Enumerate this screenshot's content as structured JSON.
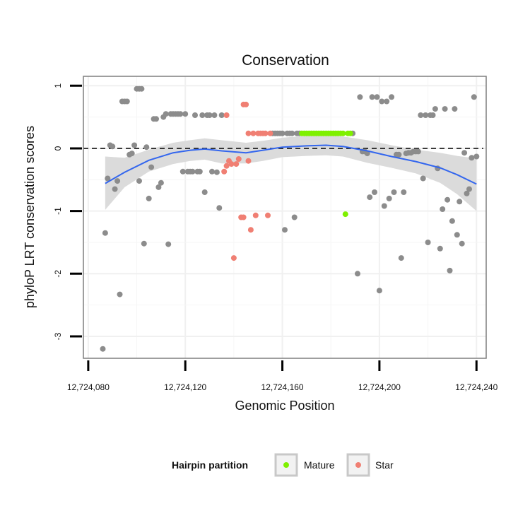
{
  "chart_data": {
    "type": "scatter",
    "title": "Conservation",
    "xlabel": "Genomic Position",
    "ylabel": "phyloP LRT conservation scores",
    "xlim": [
      12724078,
      12724244
    ],
    "ylim": [
      -3.35,
      1.15
    ],
    "x_ticks": [
      {
        "value": 12724080,
        "label": "12,724,080"
      },
      {
        "value": 12724120,
        "label": "12,724,120"
      },
      {
        "value": 12724160,
        "label": "12,724,160"
      },
      {
        "value": 12724200,
        "label": "12,724,200"
      },
      {
        "value": 12724240,
        "label": "12,724,240"
      }
    ],
    "y_ticks": [
      {
        "value": 1,
        "label": "1"
      },
      {
        "value": 0,
        "label": "0"
      },
      {
        "value": -1,
        "label": "-1"
      },
      {
        "value": -2,
        "label": "-2"
      },
      {
        "value": -3,
        "label": "-3"
      }
    ],
    "grid": true,
    "reference_line": {
      "y": 0,
      "style": "dashed"
    },
    "colors": {
      "other": "#8c8c8c",
      "mature": "#7ff000",
      "star": "#f07f73",
      "smooth": "#3366ee",
      "ribbon": "#d9d9d9",
      "panel_border": "#7f7f7f"
    },
    "legend": {
      "title": "Hairpin partition",
      "position": "bottom",
      "entries": [
        {
          "label": "Mature",
          "color": "#7ff000"
        },
        {
          "label": "Star",
          "color": "#f07f73"
        }
      ]
    },
    "series": [
      {
        "group": "other",
        "points": [
          [
            12724086,
            -3.2
          ],
          [
            12724087,
            -1.35
          ],
          [
            12724088,
            -0.48
          ],
          [
            12724089,
            0.05
          ],
          [
            12724090,
            0.03
          ],
          [
            12724091,
            -0.65
          ],
          [
            12724092,
            -0.52
          ],
          [
            12724093,
            -2.33
          ],
          [
            12724094,
            0.75
          ],
          [
            12724095,
            0.75
          ],
          [
            12724096,
            0.75
          ],
          [
            12724097,
            -0.1
          ],
          [
            12724098,
            -0.08
          ],
          [
            12724099,
            0.05
          ],
          [
            12724100,
            0.95
          ],
          [
            12724101,
            0.95
          ],
          [
            12724101,
            -0.52
          ],
          [
            12724102,
            0.95
          ],
          [
            12724103,
            -1.52
          ],
          [
            12724104,
            0.02
          ],
          [
            12724105,
            -0.8
          ],
          [
            12724106,
            -0.3
          ],
          [
            12724107,
            0.47
          ],
          [
            12724108,
            0.47
          ],
          [
            12724109,
            -0.62
          ],
          [
            12724110,
            -0.55
          ],
          [
            12724111,
            0.5
          ],
          [
            12724112,
            0.55
          ],
          [
            12724113,
            -1.53
          ],
          [
            12724114,
            0.55
          ],
          [
            12724115,
            0.55
          ],
          [
            12724116,
            0.55
          ],
          [
            12724117,
            0.55
          ],
          [
            12724118,
            0.55
          ],
          [
            12724119,
            -0.37
          ],
          [
            12724120,
            0.55
          ],
          [
            12724121,
            -0.37
          ],
          [
            12724122,
            -0.37
          ],
          [
            12724123,
            -0.37
          ],
          [
            12724124,
            0.53
          ],
          [
            12724125,
            -0.37
          ],
          [
            12724126,
            -0.37
          ],
          [
            12724127,
            0.53
          ],
          [
            12724128,
            -0.7
          ],
          [
            12724129,
            0.53
          ],
          [
            12724130,
            0.53
          ],
          [
            12724131,
            -0.37
          ],
          [
            12724132,
            0.53
          ],
          [
            12724133,
            -0.38
          ],
          [
            12724134,
            -0.95
          ],
          [
            12724135,
            0.53
          ],
          [
            12724156,
            0.24
          ],
          [
            12724157,
            0.24
          ],
          [
            12724158,
            0.24
          ],
          [
            12724159,
            0.24
          ],
          [
            12724160,
            0.24
          ],
          [
            12724161,
            -1.3
          ],
          [
            12724162,
            0.24
          ],
          [
            12724163,
            0.24
          ],
          [
            12724164,
            0.24
          ],
          [
            12724165,
            -1.1
          ],
          [
            12724166,
            0.24
          ],
          [
            12724167,
            0.24
          ],
          [
            12724189,
            0.24
          ],
          [
            12724191,
            -2.0
          ],
          [
            12724192,
            0.82
          ],
          [
            12724193,
            -0.05
          ],
          [
            12724194,
            -0.05
          ],
          [
            12724195,
            -0.08
          ],
          [
            12724196,
            -0.78
          ],
          [
            12724197,
            0.82
          ],
          [
            12724198,
            -0.7
          ],
          [
            12724199,
            0.82
          ],
          [
            12724200,
            -2.27
          ],
          [
            12724201,
            0.75
          ],
          [
            12724202,
            -0.92
          ],
          [
            12724203,
            0.75
          ],
          [
            12724204,
            -0.8
          ],
          [
            12724205,
            0.82
          ],
          [
            12724206,
            -0.7
          ],
          [
            12724207,
            -0.1
          ],
          [
            12724208,
            -0.1
          ],
          [
            12724209,
            -1.75
          ],
          [
            12724210,
            -0.7
          ],
          [
            12724211,
            -0.08
          ],
          [
            12724212,
            -0.07
          ],
          [
            12724213,
            -0.07
          ],
          [
            12724214,
            -0.05
          ],
          [
            12724215,
            -0.05
          ],
          [
            12724216,
            -0.05
          ],
          [
            12724217,
            0.53
          ],
          [
            12724218,
            -0.48
          ],
          [
            12724219,
            0.53
          ],
          [
            12724220,
            -1.5
          ],
          [
            12724221,
            0.53
          ],
          [
            12724222,
            0.53
          ],
          [
            12724223,
            0.63
          ],
          [
            12724224,
            -0.32
          ],
          [
            12724225,
            -1.6
          ],
          [
            12724226,
            -0.97
          ],
          [
            12724227,
            0.63
          ],
          [
            12724228,
            -0.82
          ],
          [
            12724229,
            -1.95
          ],
          [
            12724230,
            -1.16
          ],
          [
            12724231,
            0.63
          ],
          [
            12724232,
            -1.38
          ],
          [
            12724233,
            -0.85
          ],
          [
            12724234,
            -1.52
          ],
          [
            12724235,
            -0.07
          ],
          [
            12724236,
            -0.72
          ],
          [
            12724237,
            -0.65
          ],
          [
            12724238,
            -0.15
          ],
          [
            12724239,
            0.82
          ],
          [
            12724240,
            -0.13
          ]
        ]
      },
      {
        "group": "star",
        "points": [
          [
            12724136,
            -0.37
          ],
          [
            12724137,
            0.53
          ],
          [
            12724137,
            -0.28
          ],
          [
            12724138,
            -0.2
          ],
          [
            12724139,
            -0.25
          ],
          [
            12724140,
            -1.75
          ],
          [
            12724141,
            -0.25
          ],
          [
            12724142,
            -0.17
          ],
          [
            12724143,
            -1.1
          ],
          [
            12724144,
            0.7
          ],
          [
            12724144,
            -1.1
          ],
          [
            12724145,
            0.7
          ],
          [
            12724146,
            -0.2
          ],
          [
            12724146,
            0.24
          ],
          [
            12724147,
            -1.3
          ],
          [
            12724148,
            0.24
          ],
          [
            12724149,
            -1.07
          ],
          [
            12724150,
            0.24
          ],
          [
            12724151,
            0.24
          ],
          [
            12724152,
            0.24
          ],
          [
            12724153,
            0.24
          ],
          [
            12724154,
            -1.07
          ],
          [
            12724155,
            0.24
          ]
        ]
      },
      {
        "group": "mature",
        "points": [
          [
            12724168,
            0.24
          ],
          [
            12724169,
            0.24
          ],
          [
            12724170,
            0.24
          ],
          [
            12724171,
            0.24
          ],
          [
            12724172,
            0.24
          ],
          [
            12724173,
            0.24
          ],
          [
            12724174,
            0.24
          ],
          [
            12724175,
            0.24
          ],
          [
            12724176,
            0.24
          ],
          [
            12724177,
            0.24
          ],
          [
            12724178,
            0.24
          ],
          [
            12724179,
            0.24
          ],
          [
            12724180,
            0.24
          ],
          [
            12724181,
            0.24
          ],
          [
            12724182,
            0.24
          ],
          [
            12724183,
            0.24
          ],
          [
            12724184,
            0.24
          ],
          [
            12724185,
            0.24
          ],
          [
            12724186,
            -1.05
          ],
          [
            12724187,
            0.24
          ],
          [
            12724188,
            0.24
          ]
        ]
      }
    ],
    "smooth": [
      {
        "x": 12724087,
        "y": -0.56,
        "lo": -0.98,
        "hi": -0.13
      },
      {
        "x": 12724095,
        "y": -0.38,
        "lo": -0.62,
        "hi": -0.15
      },
      {
        "x": 12724105,
        "y": -0.19,
        "lo": -0.37,
        "hi": -0.02
      },
      {
        "x": 12724115,
        "y": -0.07,
        "lo": -0.25,
        "hi": 0.09
      },
      {
        "x": 12724122,
        "y": -0.03,
        "lo": -0.2,
        "hi": 0.13
      },
      {
        "x": 12724128,
        "y": -0.01,
        "lo": -0.18,
        "hi": 0.16
      },
      {
        "x": 12724135,
        "y": -0.04,
        "lo": -0.24,
        "hi": 0.13
      },
      {
        "x": 12724145,
        "y": -0.07,
        "lo": -0.24,
        "hi": 0.09
      },
      {
        "x": 12724152,
        "y": -0.03,
        "lo": -0.2,
        "hi": 0.12
      },
      {
        "x": 12724160,
        "y": 0.02,
        "lo": -0.14,
        "hi": 0.17
      },
      {
        "x": 12724170,
        "y": 0.04,
        "lo": -0.12,
        "hi": 0.2
      },
      {
        "x": 12724178,
        "y": 0.05,
        "lo": -0.11,
        "hi": 0.21
      },
      {
        "x": 12724185,
        "y": 0.03,
        "lo": -0.13,
        "hi": 0.19
      },
      {
        "x": 12724195,
        "y": -0.04,
        "lo": -0.23,
        "hi": 0.13
      },
      {
        "x": 12724205,
        "y": -0.13,
        "lo": -0.31,
        "hi": 0.05
      },
      {
        "x": 12724215,
        "y": -0.21,
        "lo": -0.4,
        "hi": -0.02
      },
      {
        "x": 12724225,
        "y": -0.31,
        "lo": -0.55,
        "hi": -0.07
      },
      {
        "x": 12724232,
        "y": -0.42,
        "lo": -0.73,
        "hi": -0.12
      },
      {
        "x": 12724240,
        "y": -0.57,
        "lo": -1.0,
        "hi": -0.16
      }
    ]
  }
}
